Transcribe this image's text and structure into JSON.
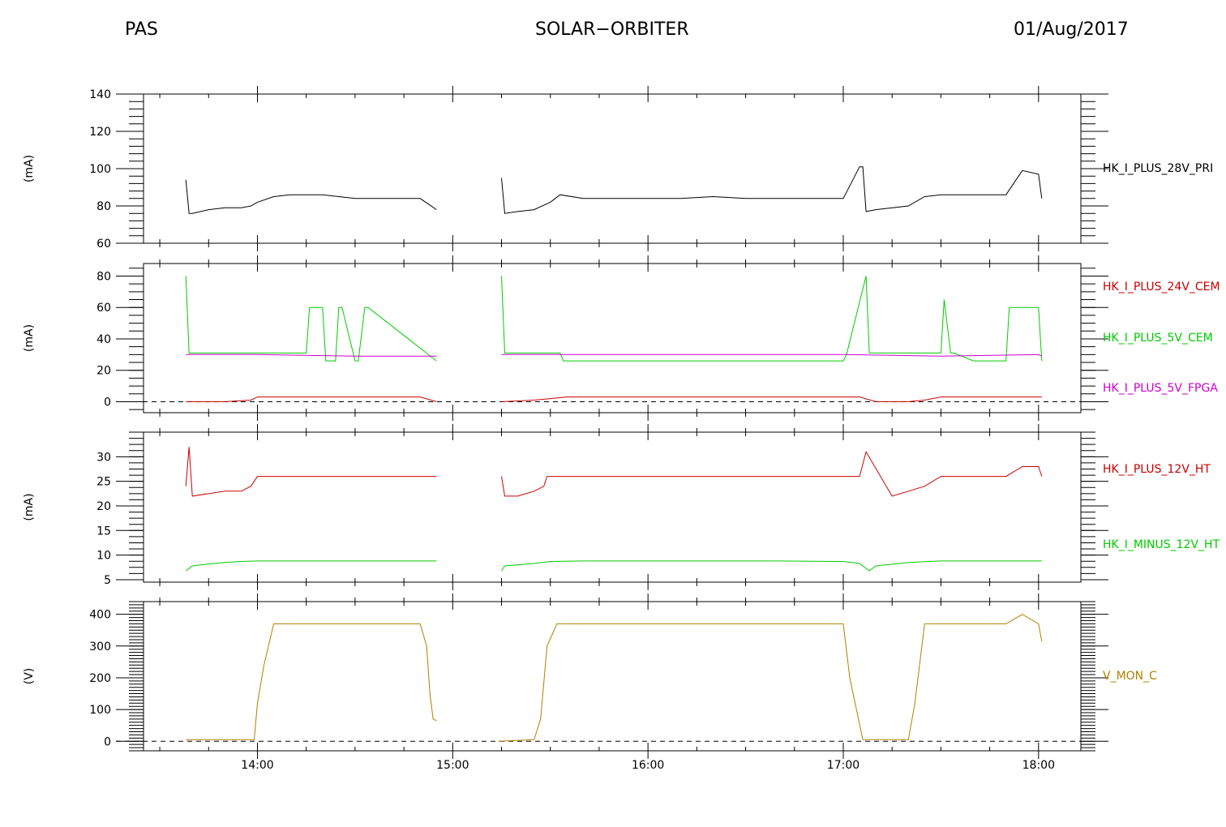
{
  "header": {
    "left": "PAS",
    "center": "SOLAR−ORBITER",
    "right": "01/Aug/2017"
  },
  "chart_data": [
    {
      "type": "line",
      "ylabel": "(mA)",
      "ylim": [
        60,
        140
      ],
      "yticks": [
        60,
        80,
        100,
        120,
        140
      ],
      "xlim": [
        "13:25",
        "18:13"
      ],
      "xticks": [
        "14:00",
        "15:00",
        "16:00",
        "17:00",
        "18:00"
      ],
      "grid": false,
      "series": [
        {
          "name": "HK_I_PLUS_28V_PRI",
          "color": "#000000",
          "x": [
            "13:38",
            "13:39",
            "13:40",
            "13:45",
            "13:50",
            "13:55",
            "13:58",
            "14:00",
            "14:05",
            "14:10",
            "14:15",
            "14:20",
            "14:25",
            "14:30",
            "14:35",
            "14:40",
            "14:45",
            "14:50",
            "14:55",
            null,
            "15:15",
            "15:16",
            "15:20",
            "15:25",
            "15:30",
            "15:33",
            "15:40",
            "15:50",
            "16:00",
            "16:10",
            "16:20",
            "16:30",
            "16:40",
            "16:50",
            "17:00",
            "17:05",
            "17:06",
            "17:07",
            "17:10",
            "17:20",
            "17:25",
            "17:30",
            "17:40",
            "17:50",
            "17:55",
            "18:00",
            "18:01"
          ],
          "y": [
            94,
            76,
            76,
            78,
            79,
            79,
            80,
            82,
            85,
            86,
            86,
            86,
            85,
            84,
            84,
            84,
            84,
            84,
            78,
            null,
            95,
            76,
            77,
            78,
            82,
            86,
            84,
            84,
            84,
            84,
            85,
            84,
            84,
            84,
            84,
            101,
            101,
            77,
            78,
            80,
            85,
            86,
            86,
            86,
            99,
            97,
            84
          ]
        }
      ]
    },
    {
      "type": "line",
      "ylabel": "(mA)",
      "ylim": [
        -7,
        88
      ],
      "yticks": [
        0,
        20,
        40,
        60,
        80
      ],
      "xlim": [
        "13:25",
        "18:13"
      ],
      "xticks": [
        "14:00",
        "15:00",
        "16:00",
        "17:00",
        "18:00"
      ],
      "grid": false,
      "series": [
        {
          "name": "HK_I_PLUS_24V_CEM",
          "color": "#cc0000",
          "x": [
            "13:38",
            "13:50",
            "13:58",
            "14:00",
            "14:10",
            "14:20",
            "14:30",
            "14:40",
            "14:50",
            "14:55",
            null,
            "15:15",
            "15:25",
            "15:30",
            "15:35",
            "15:40",
            "16:00",
            "16:20",
            "16:40",
            "17:00",
            "17:05",
            "17:10",
            "17:20",
            "17:25",
            "17:30",
            "17:40",
            "17:50",
            "18:00",
            "18:01"
          ],
          "y": [
            0,
            0,
            1,
            3,
            3,
            3,
            3,
            3,
            3,
            0,
            null,
            0,
            1,
            2,
            3,
            3,
            3,
            3,
            3,
            3,
            3,
            0,
            0,
            1,
            3,
            3,
            3,
            3,
            3
          ]
        },
        {
          "name": "HK_I_PLUS_5V_CEM",
          "color": "#00cc00",
          "x": [
            "13:38",
            "13:39",
            "13:40",
            "14:15",
            "14:16",
            "14:20",
            "14:21",
            "14:22",
            "14:24",
            "14:25",
            "14:26",
            "14:30",
            "14:31",
            "14:33",
            "14:34",
            "14:55",
            null,
            "15:15",
            "15:16",
            "15:20",
            "15:33",
            "15:34",
            "15:40",
            "16:00",
            "16:20",
            "16:40",
            "17:00",
            "17:01",
            "17:07",
            "17:08",
            "17:30",
            "17:31",
            "17:33",
            "17:34",
            "17:40",
            "17:50",
            "17:51",
            "17:52",
            "17:55",
            "18:00",
            "18:01"
          ],
          "y": [
            80,
            31,
            31,
            31,
            60,
            60,
            26,
            26,
            26,
            60,
            60,
            26,
            26,
            60,
            60,
            26,
            null,
            80,
            31,
            31,
            31,
            26,
            26,
            26,
            26,
            26,
            26,
            30,
            80,
            31,
            31,
            65,
            31,
            31,
            26,
            26,
            60,
            60,
            60,
            60,
            26
          ]
        },
        {
          "name": "HK_I_PLUS_5V_FPGA",
          "color": "#cc00cc",
          "x": [
            "13:38",
            "14:00",
            "14:30",
            "14:55",
            null,
            "15:15",
            "15:30",
            "16:00",
            "16:30",
            "17:00",
            "17:30",
            "18:00",
            "18:01"
          ],
          "y": [
            30,
            30,
            29,
            29,
            null,
            30,
            30,
            30,
            30,
            30,
            29,
            30,
            29
          ]
        }
      ]
    },
    {
      "type": "line",
      "ylabel": "(mA)",
      "ylim": [
        4.5,
        35
      ],
      "yticks": [
        5,
        10,
        15,
        20,
        25,
        30
      ],
      "xlim": [
        "13:25",
        "18:13"
      ],
      "xticks": [
        "14:00",
        "15:00",
        "16:00",
        "17:00",
        "18:00"
      ],
      "grid": false,
      "series": [
        {
          "name": "HK_I_PLUS_12V_HT",
          "color": "#cc0000",
          "x": [
            "13:38",
            "13:39",
            "13:40",
            "13:50",
            "13:55",
            "13:58",
            "14:00",
            "14:20",
            "14:40",
            "14:55",
            null,
            "15:15",
            "15:16",
            "15:20",
            "15:25",
            "15:28",
            "15:29",
            "15:40",
            "16:00",
            "16:20",
            "16:40",
            "17:00",
            "17:05",
            "17:07",
            "17:15",
            "17:20",
            "17:25",
            "17:30",
            "17:40",
            "17:50",
            "17:55",
            "18:00",
            "18:01"
          ],
          "y": [
            24,
            32,
            22,
            23,
            23,
            24,
            26,
            26,
            26,
            26,
            null,
            26,
            22,
            22,
            23,
            24,
            26,
            26,
            26,
            26,
            26,
            26,
            26,
            31,
            22,
            23,
            24,
            26,
            26,
            26,
            28,
            28,
            26
          ]
        },
        {
          "name": "HK_I_MINUS_12V_HT",
          "color": "#00cc00",
          "x": [
            "13:38",
            "13:40",
            "13:45",
            "13:50",
            "13:55",
            "14:00",
            "14:20",
            "14:40",
            "14:55",
            null,
            "15:15",
            "15:16",
            "15:25",
            "15:30",
            "15:40",
            "16:00",
            "16:20",
            "16:40",
            "17:00",
            "17:05",
            "17:08",
            "17:10",
            "17:20",
            "17:30",
            "17:40",
            "18:00",
            "18:01"
          ],
          "y": [
            6.8,
            7.8,
            8.2,
            8.5,
            8.7,
            8.8,
            8.8,
            8.8,
            8.8,
            null,
            6.8,
            7.8,
            8.3,
            8.7,
            8.8,
            8.8,
            8.8,
            8.8,
            8.7,
            8.3,
            6.8,
            7.8,
            8.5,
            8.8,
            8.8,
            8.8,
            8.8
          ]
        }
      ]
    },
    {
      "type": "line",
      "ylabel": "(V)",
      "ylim": [
        -30,
        440
      ],
      "yticks": [
        0,
        100,
        200,
        300,
        400
      ],
      "xlim": [
        "13:25",
        "18:13"
      ],
      "xticks": [
        "14:00",
        "15:00",
        "16:00",
        "17:00",
        "18:00"
      ],
      "grid": false,
      "series": [
        {
          "name": "V_MON_C",
          "color": "#b08000",
          "x": [
            "13:38",
            "13:50",
            "13:59",
            "14:00",
            "14:02",
            "14:05",
            "14:30",
            "14:50",
            "14:52",
            "14:53",
            "14:54",
            "14:55",
            null,
            "15:14",
            "15:25",
            "15:27",
            "15:29",
            "15:32",
            "16:00",
            "16:30",
            "17:00",
            "17:02",
            "17:06",
            "17:10",
            "17:20",
            "17:22",
            "17:25",
            "17:30",
            "17:40",
            "17:50",
            "17:55",
            "18:00",
            "18:01"
          ],
          "y": [
            5,
            5,
            5,
            120,
            240,
            370,
            370,
            370,
            300,
            150,
            70,
            65,
            null,
            0,
            5,
            70,
            300,
            370,
            370,
            370,
            370,
            200,
            5,
            5,
            5,
            120,
            370,
            370,
            370,
            370,
            400,
            370,
            315
          ]
        }
      ]
    }
  ]
}
